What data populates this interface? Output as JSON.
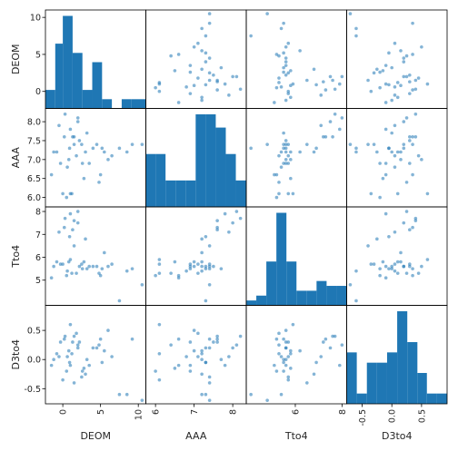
{
  "chart_data": {
    "type": "scatter",
    "variables": [
      "DEOM",
      "AAA",
      "Tto4",
      "D3to4"
    ],
    "ranges": {
      "DEOM": [
        -2.3,
        11
      ],
      "AAA": [
        5.75,
        8.35
      ],
      "Tto4": [
        3.9,
        8.2
      ],
      "D3to4": [
        -0.76,
        0.93
      ]
    },
    "ticks": {
      "DEOM": [
        0,
        5,
        10
      ],
      "AAA": [
        6.0,
        6.5,
        7.0,
        7.5,
        8.0
      ],
      "Tto4": [
        5,
        6,
        7,
        8
      ],
      "D3to4": [
        -0.5,
        0.0,
        0.5
      ]
    },
    "xticks": {
      "DEOM": [
        0,
        5,
        10
      ],
      "AAA": [
        6,
        7,
        8
      ],
      "Tto4": [
        6,
        8
      ],
      "D3to4": [
        -0.5,
        0.0,
        0.5
      ]
    },
    "tick_labels": {
      "DEOM": [
        "0",
        "5",
        "10"
      ],
      "AAA": [
        "6.0",
        "6.5",
        "7.0",
        "7.5",
        "8.0"
      ],
      "Tto4": [
        "5",
        "6",
        "7",
        "8"
      ],
      "D3to4": [
        "-0.5",
        "0.0",
        "0.5"
      ]
    },
    "xtick_labels": {
      "DEOM": [
        "0",
        "5",
        "10"
      ],
      "AAA": [
        "6",
        "7",
        "8"
      ],
      "Tto4": [
        "6",
        "8"
      ],
      "D3to4": [
        "-0.5",
        "0.0",
        "0.5"
      ]
    },
    "histograms": {
      "DEOM": {
        "edges": [
          -2.3,
          -1.0,
          0.0,
          1.3,
          2.6,
          3.9,
          5.2,
          6.5,
          7.8,
          9.1,
          11.0
        ],
        "counts": [
          2,
          7,
          10,
          6,
          2,
          5,
          1,
          0,
          1,
          1
        ]
      },
      "AAA": {
        "edges": [
          5.75,
          6.0,
          6.26,
          6.52,
          6.78,
          7.04,
          7.3,
          7.56,
          7.82,
          8.08,
          8.35
        ],
        "counts": [
          4,
          4,
          2,
          2,
          2,
          7,
          7,
          6,
          4,
          2
        ]
      },
      "Tto4": {
        "edges": [
          3.9,
          4.33,
          4.76,
          5.19,
          5.62,
          6.05,
          6.48,
          6.91,
          7.34,
          7.77,
          8.2
        ],
        "counts": [
          1,
          2,
          9,
          19,
          9,
          3,
          3,
          5,
          4,
          4
        ]
      },
      "D3to4": {
        "edges": [
          -0.76,
          -0.59,
          -0.42,
          -0.25,
          -0.08,
          0.09,
          0.26,
          0.43,
          0.59,
          0.76,
          0.93
        ],
        "counts": [
          5,
          1,
          4,
          4,
          5,
          9,
          6,
          3,
          1,
          1
        ]
      }
    },
    "points": [
      {
        "DEOM": -0.5,
        "AAA": 7.9,
        "Tto4": 7.1,
        "D3to4": 0.05
      },
      {
        "DEOM": 0.2,
        "AAA": 7.6,
        "Tto4": 7.3,
        "D3to4": 0.35
      },
      {
        "DEOM": 1.0,
        "AAA": 7.8,
        "Tto4": 7.9,
        "D3to4": -0.1
      },
      {
        "DEOM": 2.0,
        "AAA": 8.1,
        "Tto4": 8.0,
        "D3to4": 0.25
      },
      {
        "DEOM": 1.5,
        "AAA": 7.6,
        "Tto4": 7.6,
        "D3to4": 0.4
      },
      {
        "DEOM": 3.0,
        "AAA": 7.2,
        "Tto4": 6.8,
        "D3to4": -0.25
      },
      {
        "DEOM": 0.8,
        "AAA": 7.0,
        "Tto4": 5.8,
        "D3to4": 0.15
      },
      {
        "DEOM": -0.3,
        "AAA": 6.9,
        "Tto4": 5.7,
        "D3to4": 0.3
      },
      {
        "DEOM": 4.5,
        "AAA": 7.4,
        "Tto4": 5.6,
        "D3to4": 0.2
      },
      {
        "DEOM": 5.2,
        "AAA": 7.3,
        "Tto4": 5.5,
        "D3to4": -0.05
      },
      {
        "DEOM": 2.5,
        "AAA": 7.4,
        "Tto4": 5.7,
        "D3to4": -0.3
      },
      {
        "DEOM": 1.2,
        "AAA": 6.1,
        "Tto4": 5.3,
        "D3to4": 0.1
      },
      {
        "DEOM": 0.5,
        "AAA": 6.0,
        "Tto4": 5.2,
        "D3to4": -0.2
      },
      {
        "DEOM": 2.8,
        "AAA": 6.5,
        "Tto4": 5.8,
        "D3to4": -0.15
      },
      {
        "DEOM": 6.0,
        "AAA": 7.0,
        "Tto4": 5.6,
        "D3to4": 0.5
      },
      {
        "DEOM": 8.5,
        "AAA": 7.2,
        "Tto4": 5.4,
        "D3to4": -0.6
      },
      {
        "DEOM": 10.5,
        "AAA": 7.4,
        "Tto4": 4.8,
        "D3to4": -0.7
      },
      {
        "DEOM": -1.2,
        "AAA": 7.2,
        "Tto4": 5.6,
        "D3to4": 0.0
      },
      {
        "DEOM": 1.8,
        "AAA": 7.1,
        "Tto4": 5.3,
        "D3to4": 0.45
      },
      {
        "DEOM": 3.5,
        "AAA": 6.9,
        "Tto4": 5.6,
        "D3to4": -0.1
      },
      {
        "DEOM": 4.8,
        "AAA": 6.4,
        "Tto4": 5.3,
        "D3to4": 0.25
      },
      {
        "DEOM": 0.0,
        "AAA": 6.1,
        "Tto4": 5.7,
        "D3to4": -0.35
      },
      {
        "DEOM": 1.0,
        "AAA": 6.1,
        "Tto4": 5.9,
        "D3to4": 0.6
      },
      {
        "DEOM": 9.2,
        "AAA": 7.4,
        "Tto4": 5.5,
        "D3to4": 0.35
      },
      {
        "DEOM": 7.5,
        "AAA": 7.3,
        "Tto4": 4.1,
        "D3to4": -0.6
      },
      {
        "DEOM": 2.2,
        "AAA": 7.5,
        "Tto4": 5.6,
        "D3to4": 0.3
      },
      {
        "DEOM": 5.5,
        "AAA": 7.2,
        "Tto4": 6.2,
        "D3to4": 0.15
      },
      {
        "DEOM": -0.8,
        "AAA": 7.2,
        "Tto4": 5.8,
        "D3to4": 0.1
      },
      {
        "DEOM": 0.3,
        "AAA": 8.2,
        "Tto4": 7.7,
        "D3to4": 0.4
      },
      {
        "DEOM": 2.0,
        "AAA": 8.0,
        "Tto4": 7.5,
        "D3to4": 0.2
      },
      {
        "DEOM": 1.5,
        "AAA": 7.4,
        "Tto4": 6.5,
        "D3to4": -0.4
      },
      {
        "DEOM": 0.6,
        "AAA": 6.8,
        "Tto4": 5.4,
        "D3to4": 0.05
      },
      {
        "DEOM": 3.2,
        "AAA": 7.7,
        "Tto4": 5.5,
        "D3to4": 0.0
      },
      {
        "DEOM": 4.0,
        "AAA": 7.3,
        "Tto4": 5.6,
        "D3to4": 0.2
      },
      {
        "DEOM": -1.5,
        "AAA": 6.6,
        "Tto4": 5.1,
        "D3to4": -0.1
      },
      {
        "DEOM": 5.0,
        "AAA": 6.6,
        "Tto4": 5.2,
        "D3to4": 0.35
      },
      {
        "DEOM": 2.6,
        "AAA": 6.9,
        "Tto4": 5.5,
        "D3to4": -0.2
      },
      {
        "DEOM": 1.3,
        "AAA": 7.6,
        "Tto4": 7.2,
        "D3to4": 0.3
      },
      {
        "DEOM": 0.9,
        "AAA": 7.3,
        "Tto4": 6.9,
        "D3to4": -0.05
      },
      {
        "DEOM": 6.5,
        "AAA": 7.1,
        "Tto4": 5.7,
        "D3to4": 0.05
      }
    ],
    "colors": {
      "bar": "#1f77b4",
      "point": "#1f77b4",
      "axis": "#000000",
      "text": "#262626"
    }
  }
}
